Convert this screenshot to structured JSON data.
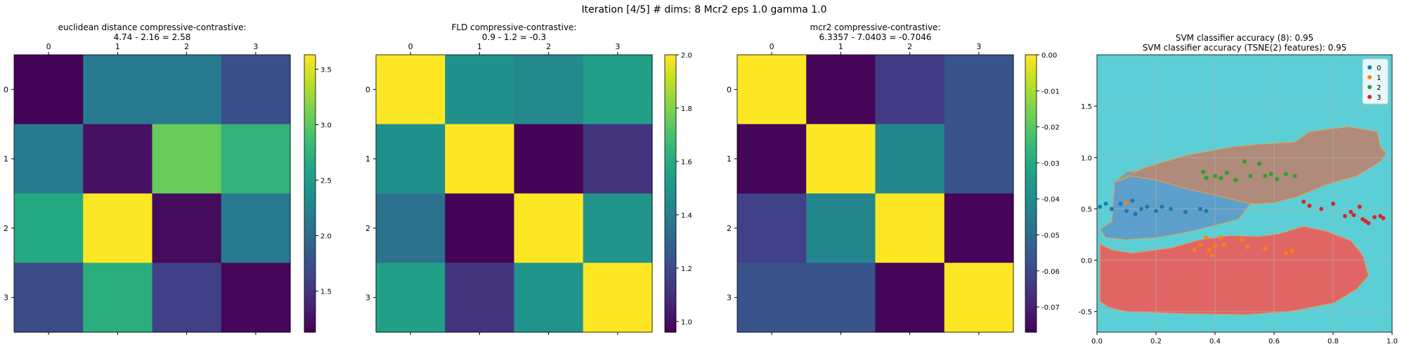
{
  "suptitle": "Iteration [4/5] # dims: 8 Mcr2 eps 1.0 gamma 1.0",
  "chart_data": [
    {
      "type": "heatmap",
      "title_lines": [
        "euclidean distance compressive-contrastive:",
        "4.74 - 2.16 = 2.58"
      ],
      "x_ticks": [
        "0",
        "1",
        "2",
        "3"
      ],
      "y_ticks": [
        "0",
        "1",
        "2",
        "3"
      ],
      "values": [
        [
          1.15,
          2.15,
          2.15,
          1.75
        ],
        [
          2.15,
          1.25,
          3.05,
          2.75
        ],
        [
          2.65,
          3.62,
          1.2,
          2.15
        ],
        [
          1.7,
          2.7,
          1.6,
          1.18
        ]
      ],
      "colorbar": {
        "vmin": 1.13,
        "vmax": 3.63,
        "ticks": [
          "1.5",
          "2.0",
          "2.5",
          "3.0",
          "3.5"
        ],
        "tick_values": [
          1.5,
          2.0,
          2.5,
          3.0,
          3.5
        ]
      }
    },
    {
      "type": "heatmap",
      "title_lines": [
        "FLD compressive-contrastive:",
        "0.9 - 1.2 = -0.3"
      ],
      "x_ticks": [
        "0",
        "1",
        "2",
        "3"
      ],
      "y_ticks": [
        "0",
        "1",
        "2",
        "3"
      ],
      "values": [
        [
          2.0,
          1.48,
          1.45,
          1.55
        ],
        [
          1.48,
          2.0,
          0.97,
          1.12
        ],
        [
          1.35,
          0.97,
          2.0,
          1.5
        ],
        [
          1.55,
          1.12,
          1.5,
          2.0
        ]
      ],
      "colorbar": {
        "vmin": 0.96,
        "vmax": 2.0,
        "ticks": [
          "1.0",
          "1.2",
          "1.4",
          "1.6",
          "1.8",
          "2.0"
        ],
        "tick_values": [
          1.0,
          1.2,
          1.4,
          1.6,
          1.8,
          2.0
        ]
      }
    },
    {
      "type": "heatmap",
      "title_lines": [
        "mcr2 compressive-contrastive:",
        "6.3357 - 7.0403 = -0.7046"
      ],
      "x_ticks": [
        "0",
        "1",
        "2",
        "3"
      ],
      "y_ticks": [
        "0",
        "1",
        "2",
        "3"
      ],
      "values": [
        [
          0.0,
          -0.076,
          -0.063,
          -0.057
        ],
        [
          -0.076,
          0.0,
          -0.042,
          -0.057
        ],
        [
          -0.062,
          -0.042,
          0.0,
          -0.076
        ],
        [
          -0.057,
          -0.057,
          -0.076,
          0.0
        ]
      ],
      "colorbar": {
        "vmin": -0.077,
        "vmax": 0.0,
        "ticks": [
          "0.00",
          "-0.01",
          "-0.02",
          "-0.03",
          "-0.04",
          "-0.05",
          "-0.06",
          "-0.07"
        ],
        "tick_values": [
          0.0,
          -0.01,
          -0.02,
          -0.03,
          -0.04,
          -0.05,
          -0.06,
          -0.07
        ]
      }
    },
    {
      "type": "scatter",
      "title_lines": [
        "SVM classifier accuracy (8): 0.95",
        "SVM classifier accuracy (TSNE(2) features): 0.95"
      ],
      "xlim": [
        0.0,
        1.0
      ],
      "ylim": [
        -0.7,
        2.0
      ],
      "x_ticks": [
        "0.0",
        "0.2",
        "0.4",
        "0.6",
        "0.8",
        "1.0"
      ],
      "x_tick_values": [
        0.0,
        0.2,
        0.4,
        0.6,
        0.8,
        1.0
      ],
      "y_ticks": [
        "-0.5",
        "0.0",
        "0.5",
        "1.0",
        "1.5"
      ],
      "y_tick_values": [
        -0.5,
        0.0,
        0.5,
        1.0,
        1.5
      ],
      "grid": true,
      "legend": "top-right",
      "background_color": "#5ccfd6",
      "regions": [
        {
          "class": "3",
          "color": "#e06666",
          "polygon": [
            [
              0.01,
              0.16
            ],
            [
              0.05,
              0.1
            ],
            [
              0.12,
              0.07
            ],
            [
              0.25,
              0.12
            ],
            [
              0.35,
              0.2
            ],
            [
              0.45,
              0.24
            ],
            [
              0.55,
              0.23
            ],
            [
              0.62,
              0.26
            ],
            [
              0.7,
              0.33
            ],
            [
              0.78,
              0.28
            ],
            [
              0.86,
              0.19
            ],
            [
              0.9,
              0.05
            ],
            [
              0.92,
              -0.15
            ],
            [
              0.88,
              -0.28
            ],
            [
              0.8,
              -0.42
            ],
            [
              0.65,
              -0.5
            ],
            [
              0.5,
              -0.53
            ],
            [
              0.3,
              -0.52
            ],
            [
              0.1,
              -0.5
            ],
            [
              0.04,
              -0.46
            ],
            [
              0.01,
              -0.4
            ]
          ]
        },
        {
          "class": "0",
          "color": "#5d9fcb",
          "polygon": [
            [
              0.01,
              0.3
            ],
            [
              0.05,
              0.38
            ],
            [
              0.06,
              0.76
            ],
            [
              0.1,
              0.86
            ],
            [
              0.18,
              0.88
            ],
            [
              0.2,
              0.78
            ],
            [
              0.3,
              0.7
            ],
            [
              0.42,
              0.62
            ],
            [
              0.52,
              0.55
            ],
            [
              0.48,
              0.4
            ],
            [
              0.4,
              0.34
            ],
            [
              0.3,
              0.27
            ],
            [
              0.2,
              0.22
            ],
            [
              0.1,
              0.2
            ],
            [
              0.03,
              0.22
            ]
          ]
        },
        {
          "class": "2",
          "color": "#b08a7a",
          "polygon": [
            [
              0.06,
              0.76
            ],
            [
              0.16,
              0.9
            ],
            [
              0.3,
              1.02
            ],
            [
              0.45,
              1.1
            ],
            [
              0.55,
              1.13
            ],
            [
              0.67,
              1.15
            ],
            [
              0.72,
              1.25
            ],
            [
              0.85,
              1.3
            ],
            [
              0.95,
              1.25
            ],
            [
              0.96,
              1.1
            ],
            [
              0.98,
              1.04
            ],
            [
              0.96,
              0.96
            ],
            [
              0.88,
              0.82
            ],
            [
              0.78,
              0.74
            ],
            [
              0.68,
              0.62
            ],
            [
              0.6,
              0.56
            ],
            [
              0.55,
              0.55
            ],
            [
              0.52,
              0.55
            ],
            [
              0.42,
              0.62
            ],
            [
              0.3,
              0.7
            ],
            [
              0.2,
              0.78
            ],
            [
              0.12,
              0.82
            ]
          ]
        }
      ],
      "series": [
        {
          "name": "0",
          "color": "#1f77b4",
          "points": [
            [
              0.01,
              0.52
            ],
            [
              0.03,
              0.55
            ],
            [
              0.05,
              0.5
            ],
            [
              0.08,
              0.55
            ],
            [
              0.1,
              0.48
            ],
            [
              0.12,
              0.58
            ],
            [
              0.13,
              0.45
            ],
            [
              0.15,
              0.5
            ],
            [
              0.17,
              0.52
            ],
            [
              0.2,
              0.48
            ],
            [
              0.22,
              0.52
            ],
            [
              0.25,
              0.5
            ],
            [
              0.3,
              0.47
            ],
            [
              0.35,
              0.5
            ],
            [
              0.37,
              0.48
            ]
          ]
        },
        {
          "name": "1",
          "color": "#ff7f0e",
          "points": [
            [
              0.1,
              0.56
            ],
            [
              0.33,
              0.1
            ],
            [
              0.35,
              0.15
            ],
            [
              0.37,
              0.22
            ],
            [
              0.38,
              0.1
            ],
            [
              0.39,
              0.05
            ],
            [
              0.4,
              0.14
            ],
            [
              0.42,
              0.22
            ],
            [
              0.43,
              0.15
            ],
            [
              0.49,
              0.2
            ],
            [
              0.51,
              0.13
            ],
            [
              0.57,
              0.11
            ],
            [
              0.64,
              0.07
            ],
            [
              0.66,
              0.09
            ]
          ]
        },
        {
          "name": "2",
          "color": "#2ca02c",
          "points": [
            [
              0.36,
              0.86
            ],
            [
              0.37,
              0.8
            ],
            [
              0.4,
              0.82
            ],
            [
              0.42,
              0.8
            ],
            [
              0.44,
              0.85
            ],
            [
              0.47,
              0.78
            ],
            [
              0.5,
              0.96
            ],
            [
              0.52,
              0.82
            ],
            [
              0.55,
              0.94
            ],
            [
              0.57,
              0.82
            ],
            [
              0.59,
              0.84
            ],
            [
              0.61,
              0.79
            ],
            [
              0.64,
              0.84
            ],
            [
              0.67,
              0.82
            ]
          ]
        },
        {
          "name": "3",
          "color": "#d62728",
          "points": [
            [
              0.7,
              0.57
            ],
            [
              0.72,
              0.53
            ],
            [
              0.76,
              0.5
            ],
            [
              0.8,
              0.55
            ],
            [
              0.84,
              0.43
            ],
            [
              0.86,
              0.47
            ],
            [
              0.87,
              0.44
            ],
            [
              0.89,
              0.52
            ],
            [
              0.9,
              0.4
            ],
            [
              0.91,
              0.38
            ],
            [
              0.92,
              0.36
            ],
            [
              0.94,
              0.42
            ],
            [
              0.96,
              0.43
            ],
            [
              0.97,
              0.41
            ]
          ]
        }
      ]
    }
  ]
}
